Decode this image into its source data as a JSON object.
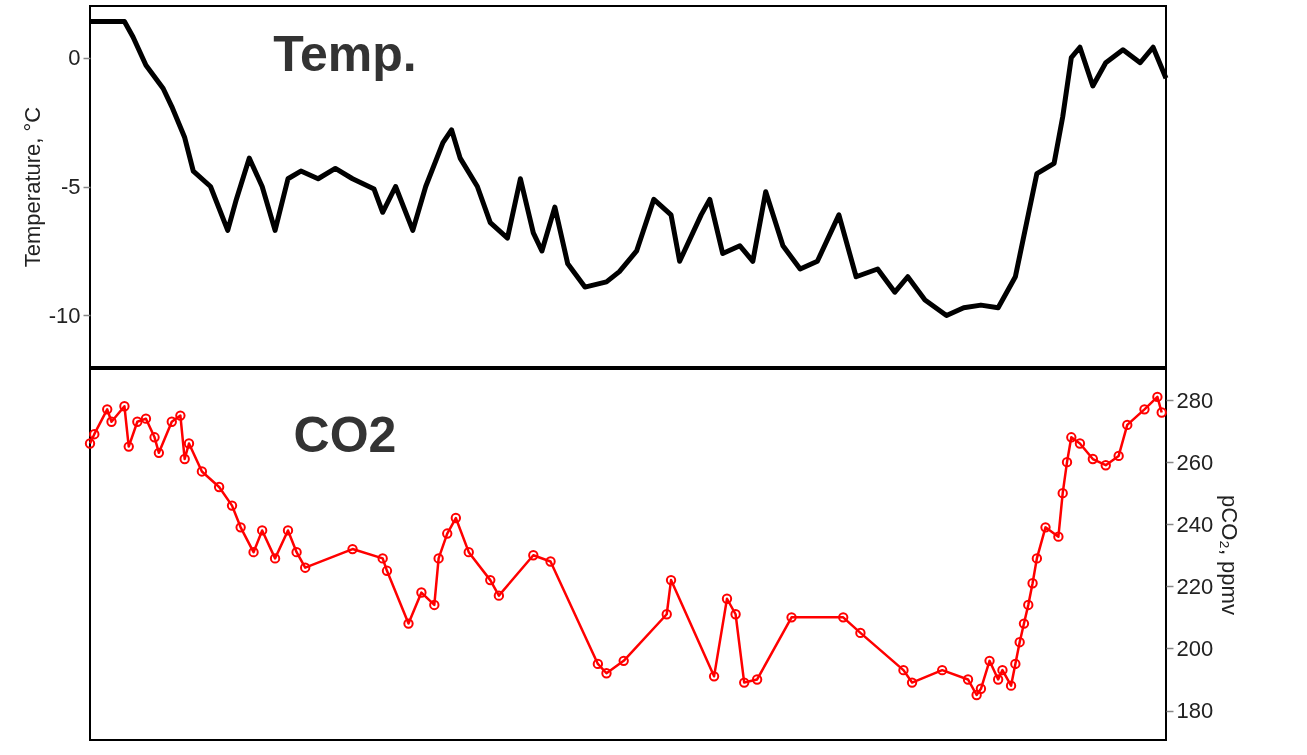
{
  "chart_data": [
    {
      "type": "line",
      "title": "Temp.",
      "ylabel": "Temperature, °C",
      "ylim": [
        -12,
        2
      ],
      "yticks": [
        -10,
        -5,
        0
      ],
      "tick_labels": "y",
      "marker": "none",
      "categories": [
        null,
        null,
        null,
        null,
        null,
        null,
        null,
        null,
        null,
        null,
        null,
        null,
        null,
        null,
        null,
        null,
        null,
        null,
        null,
        null,
        null,
        null,
        null,
        null,
        null,
        null,
        null,
        null,
        null,
        null,
        null,
        null,
        null,
        null,
        null,
        null,
        null,
        null,
        null,
        null,
        null,
        null,
        null,
        null,
        null,
        null,
        null,
        null,
        null,
        null,
        null,
        null,
        null,
        null,
        null,
        null,
        null,
        null,
        null,
        null,
        null,
        null,
        null,
        null,
        null,
        null,
        null,
        null,
        null,
        null,
        null,
        null,
        null,
        null,
        null,
        null,
        null,
        null,
        null,
        null,
        null,
        null,
        null,
        null,
        null,
        null,
        null,
        null,
        null,
        null,
        null,
        null,
        null,
        null,
        null,
        null,
        null,
        null,
        null,
        null,
        null,
        null,
        null,
        null,
        null,
        null,
        null,
        null,
        null,
        null,
        null,
        null,
        null,
        null,
        null,
        null,
        null,
        null,
        null,
        null,
        null,
        null,
        null,
        null,
        null,
        null,
        null,
        null,
        null,
        null,
        null,
        null,
        null,
        null,
        null,
        null,
        null,
        null,
        null,
        null,
        null,
        null,
        null,
        null,
        null,
        null,
        null,
        null,
        null,
        null,
        null,
        null,
        null,
        null,
        null,
        null,
        null,
        null,
        null,
        null,
        null,
        null,
        null,
        null,
        null,
        null,
        null,
        null,
        null,
        null,
        null,
        null,
        null,
        null,
        null,
        null,
        null,
        null,
        null,
        null,
        null,
        null,
        null,
        null,
        null,
        null,
        null,
        null,
        null,
        null,
        null,
        null,
        null,
        null,
        null,
        null,
        null,
        null,
        null,
        null,
        null,
        null,
        null,
        null,
        null,
        null,
        null,
        null,
        null,
        null,
        null,
        null,
        null,
        null,
        null,
        null,
        null,
        null,
        null,
        null,
        null,
        null,
        null,
        null,
        null,
        null,
        null,
        null,
        null,
        null,
        null,
        null,
        null,
        null,
        null,
        null,
        null,
        null,
        null,
        null,
        null,
        null,
        null,
        null,
        null,
        null,
        null,
        null,
        null,
        null,
        null
      ],
      "series": [
        {
          "color": "#000000",
          "values": [
            1.4,
            null,
            null,
            null,
            1.4,
            null,
            null,
            null,
            1.4,
            null,
            0.8,
            null,
            null,
            -0.3,
            null,
            null,
            null,
            -1.2,
            null,
            -1.9,
            null,
            null,
            -3.1,
            null,
            -4.4,
            null,
            null,
            null,
            -5.0,
            null,
            null,
            null,
            -6.7,
            null,
            -5.5,
            null,
            null,
            -3.9,
            null,
            null,
            -5.0,
            null,
            null,
            -6.7,
            null,
            null,
            -4.7,
            null,
            null,
            -4.4,
            null,
            null,
            null,
            -4.7,
            null,
            null,
            null,
            -4.3,
            null,
            null,
            null,
            -4.7,
            null,
            null,
            null,
            null,
            -5.1,
            null,
            -6.0,
            null,
            null,
            -5.0,
            null,
            null,
            null,
            -6.7,
            null,
            null,
            -5.0,
            null,
            null,
            null,
            -3.3,
            null,
            -2.8,
            null,
            -3.9,
            null,
            null,
            null,
            -5.0,
            null,
            null,
            -6.4,
            null,
            null,
            null,
            -7.0,
            null,
            null,
            -4.7,
            null,
            null,
            -6.8,
            null,
            -7.5,
            null,
            null,
            -5.8,
            null,
            null,
            -8.0,
            null,
            null,
            null,
            -8.9,
            null,
            null,
            null,
            null,
            -8.7,
            null,
            null,
            -8.3,
            null,
            null,
            null,
            -7.5,
            null,
            null,
            null,
            -5.5,
            null,
            null,
            null,
            -6.1,
            null,
            -7.9,
            null,
            null,
            null,
            null,
            -6.1,
            null,
            -5.5,
            null,
            null,
            -7.6,
            null,
            null,
            null,
            -7.3,
            null,
            null,
            -7.9,
            null,
            null,
            -5.2,
            null,
            null,
            null,
            -7.3,
            null,
            null,
            null,
            -8.2,
            null,
            null,
            null,
            -7.9,
            null,
            null,
            null,
            null,
            -6.1,
            null,
            null,
            null,
            -8.5,
            null,
            null,
            null,
            null,
            -8.2,
            null,
            null,
            null,
            -9.1,
            null,
            null,
            -8.5,
            null,
            null,
            null,
            -9.4,
            null,
            null,
            null,
            null,
            -10.0,
            null,
            null,
            null,
            -9.7,
            null,
            null,
            null,
            -9.6,
            null,
            null,
            null,
            -9.7,
            null,
            null,
            null,
            -8.5,
            null,
            null,
            -6.1,
            null,
            -4.5,
            null,
            null,
            null,
            -4.1,
            null,
            -2.3,
            null,
            0.0,
            null,
            0.4,
            null,
            null,
            -1.1,
            null,
            null,
            -0.2,
            null,
            null,
            null,
            0.3,
            null,
            null,
            null,
            -0.2,
            null,
            null,
            0.4,
            null,
            null,
            -0.8
          ]
        }
      ]
    },
    {
      "type": "line",
      "title": "CO2",
      "ylabel": "pCO₂, ppmv",
      "ylim": [
        170.5,
        290
      ],
      "yticks": [
        180,
        200,
        220,
        240,
        260,
        280
      ],
      "tick_labels": "y",
      "marker": "circle",
      "categories": [
        null,
        null,
        null,
        null,
        null,
        null,
        null,
        null,
        null,
        null,
        null,
        null,
        null,
        null,
        null,
        null,
        null,
        null,
        null,
        null,
        null,
        null,
        null,
        null,
        null,
        null,
        null,
        null,
        null,
        null,
        null,
        null,
        null,
        null,
        null,
        null,
        null,
        null,
        null,
        null,
        null,
        null,
        null,
        null,
        null,
        null,
        null,
        null,
        null,
        null,
        null,
        null,
        null,
        null,
        null,
        null,
        null,
        null,
        null,
        null,
        null,
        null,
        null,
        null,
        null,
        null,
        null,
        null,
        null,
        null,
        null,
        null,
        null,
        null,
        null,
        null,
        null,
        null,
        null,
        null,
        null,
        null,
        null,
        null,
        null,
        null,
        null,
        null,
        null,
        null,
        null,
        null,
        null,
        null,
        null,
        null,
        null,
        null,
        null,
        null,
        null,
        null,
        null,
        null,
        null,
        null,
        null,
        null,
        null,
        null,
        null,
        null,
        null,
        null,
        null,
        null,
        null,
        null,
        null,
        null,
        null,
        null,
        null,
        null,
        null,
        null,
        null,
        null,
        null,
        null,
        null,
        null,
        null,
        null,
        null,
        null,
        null,
        null,
        null,
        null,
        null,
        null,
        null,
        null,
        null,
        null,
        null,
        null,
        null,
        null,
        null,
        null,
        null,
        null,
        null,
        null,
        null,
        null,
        null,
        null,
        null,
        null,
        null,
        null,
        null,
        null,
        null,
        null,
        null,
        null,
        null,
        null,
        null,
        null,
        null,
        null,
        null,
        null,
        null,
        null,
        null,
        null,
        null,
        null,
        null,
        null,
        null,
        null,
        null,
        null,
        null,
        null,
        null,
        null,
        null,
        null,
        null,
        null,
        null,
        null,
        null,
        null,
        null,
        null,
        null,
        null,
        null,
        null,
        null,
        null,
        null,
        null,
        null,
        null,
        null,
        null,
        null,
        null,
        null,
        null,
        null,
        null,
        null,
        null,
        null,
        null,
        null,
        null,
        null,
        null,
        null,
        null,
        null,
        null,
        null,
        null,
        null,
        null,
        null,
        null,
        null,
        null,
        null,
        null,
        null,
        null,
        null,
        null,
        null,
        null,
        null
      ],
      "series": [
        {
          "color": "#ff0000",
          "values": [
            266,
            269,
            null,
            null,
            277,
            273,
            null,
            null,
            278,
            265,
            null,
            273,
            null,
            274,
            null,
            268,
            263,
            null,
            null,
            273,
            null,
            275,
            261,
            266,
            null,
            null,
            257,
            null,
            null,
            null,
            252,
            null,
            null,
            246,
            null,
            239,
            null,
            null,
            231,
            null,
            238,
            null,
            null,
            229,
            null,
            null,
            238,
            null,
            231,
            null,
            226,
            null,
            null,
            null,
            null,
            null,
            null,
            null,
            null,
            null,
            null,
            232,
            null,
            null,
            null,
            null,
            null,
            null,
            229,
            225,
            null,
            null,
            null,
            null,
            208,
            null,
            null,
            218,
            null,
            null,
            214,
            229,
            null,
            237,
            null,
            242,
            null,
            null,
            231,
            null,
            null,
            null,
            null,
            222,
            null,
            217,
            null,
            null,
            null,
            null,
            null,
            null,
            null,
            230,
            null,
            null,
            null,
            228,
            null,
            null,
            null,
            null,
            null,
            null,
            null,
            null,
            null,
            null,
            195,
            null,
            192,
            null,
            null,
            null,
            196,
            null,
            null,
            null,
            null,
            null,
            null,
            null,
            null,
            null,
            211,
            222,
            null,
            null,
            null,
            null,
            null,
            null,
            null,
            null,
            null,
            191,
            null,
            null,
            216,
            null,
            211,
            null,
            189,
            null,
            null,
            190,
            null,
            null,
            null,
            null,
            null,
            null,
            null,
            210,
            null,
            null,
            null,
            null,
            null,
            null,
            null,
            null,
            null,
            null,
            null,
            210,
            null,
            null,
            null,
            205,
            null,
            null,
            null,
            null,
            null,
            null,
            null,
            null,
            null,
            193,
            null,
            189,
            null,
            null,
            null,
            null,
            null,
            null,
            193,
            null,
            null,
            null,
            null,
            null,
            190,
            null,
            185,
            187,
            null,
            196,
            null,
            190,
            193,
            null,
            188,
            195,
            202,
            208,
            214,
            221,
            229,
            null,
            239,
            null,
            null,
            236,
            250,
            260,
            268,
            null,
            266,
            null,
            null,
            261,
            null,
            null,
            259,
            null,
            null,
            262,
            null,
            272,
            null,
            null,
            null,
            277,
            null,
            null,
            281,
            276,
            null
          ]
        }
      ]
    }
  ]
}
